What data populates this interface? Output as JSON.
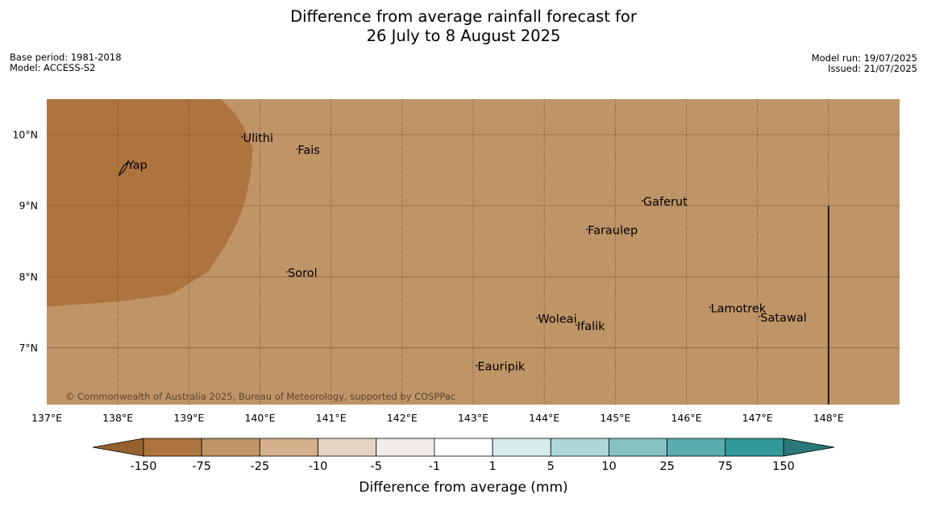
{
  "title": {
    "line1": "Difference from average rainfall forecast for",
    "line2": "26 July to 8 August 2025"
  },
  "meta_left": {
    "base_period": "Base period: 1981-2018",
    "model": "Model: ACCESS-S2"
  },
  "meta_right": {
    "model_run": "Model run: 19/07/2025",
    "issued": "Issued: 21/07/2025"
  },
  "map": {
    "lon_range": [
      137,
      149
    ],
    "lat_range": [
      6.2,
      10.5
    ],
    "lon_ticks": [
      {
        "value": 137,
        "label": "137°E"
      },
      {
        "value": 138,
        "label": "138°E"
      },
      {
        "value": 139,
        "label": "139°E"
      },
      {
        "value": 140,
        "label": "140°E"
      },
      {
        "value": 141,
        "label": "141°E"
      },
      {
        "value": 142,
        "label": "142°E"
      },
      {
        "value": 143,
        "label": "143°E"
      },
      {
        "value": 144,
        "label": "144°E"
      },
      {
        "value": 145,
        "label": "145°E"
      },
      {
        "value": 146,
        "label": "146°E"
      },
      {
        "value": 147,
        "label": "147°E"
      },
      {
        "value": 148,
        "label": "148°E"
      }
    ],
    "lat_ticks": [
      {
        "value": 10,
        "label": "10°N"
      },
      {
        "value": 9,
        "label": "9°N"
      },
      {
        "value": 8,
        "label": "8°N"
      },
      {
        "value": 7,
        "label": "7°N"
      }
    ],
    "background_category": "-75 to -25",
    "anomaly_regions": [
      {
        "category": "-150 to -75",
        "color": "#ad743f",
        "polygon": [
          [
            137,
            10.5
          ],
          [
            139.45,
            10.5
          ],
          [
            139.65,
            10.3
          ],
          [
            139.8,
            10.05
          ],
          [
            139.9,
            9.8
          ],
          [
            139.87,
            9.45
          ],
          [
            139.8,
            9.1
          ],
          [
            139.7,
            8.8
          ],
          [
            139.52,
            8.45
          ],
          [
            139.27,
            8.07
          ],
          [
            138.75,
            7.75
          ],
          [
            138.0,
            7.65
          ],
          [
            137,
            7.58
          ]
        ]
      }
    ],
    "dividing_line": {
      "lon": 148,
      "lat_from": 6.2,
      "lat_to": 9.0
    },
    "islands": [
      {
        "name": "Ulithi",
        "lon": 139.75,
        "lat": 9.9
      },
      {
        "name": "Fais",
        "lon": 140.52,
        "lat": 9.73
      },
      {
        "name": "Yap",
        "lon": 138.12,
        "lat": 9.52
      },
      {
        "name": "Gaferut",
        "lon": 145.38,
        "lat": 9.0
      },
      {
        "name": "Faraulep",
        "lon": 144.6,
        "lat": 8.6
      },
      {
        "name": "Sorol",
        "lon": 140.38,
        "lat": 8.0
      },
      {
        "name": "Lamotrek",
        "lon": 146.33,
        "lat": 7.5
      },
      {
        "name": "Woleai",
        "lon": 143.9,
        "lat": 7.35
      },
      {
        "name": "Ifalik",
        "lon": 144.45,
        "lat": 7.25
      },
      {
        "name": "Satawal",
        "lon": 147.03,
        "lat": 7.37
      },
      {
        "name": "Eauripik",
        "lon": 143.05,
        "lat": 6.68
      }
    ],
    "copyright": "© Commonwealth of Australia 2025, Bureau of Meteorology, supported by COSPPac"
  },
  "legend": {
    "title": "Difference from average (mm)",
    "extend_low_color": "#96602e",
    "extend_high_color": "#2a7777",
    "bins": [
      {
        "from": "-150",
        "to": "-75",
        "color": "#ad743f"
      },
      {
        "from": "-75",
        "to": "-25",
        "color": "#bf9467"
      },
      {
        "from": "-25",
        "to": "-10",
        "color": "#d5b08c"
      },
      {
        "from": "-10",
        "to": "-5",
        "color": "#e6d5c3"
      },
      {
        "from": "-5",
        "to": "-1",
        "color": "#f1ede8"
      },
      {
        "from": "-1",
        "to": "1",
        "color": "#ffffff"
      },
      {
        "from": "1",
        "to": "5",
        "color": "#d6ebea"
      },
      {
        "from": "5",
        "to": "10",
        "color": "#add7d7"
      },
      {
        "from": "10",
        "to": "25",
        "color": "#84c2c1"
      },
      {
        "from": "25",
        "to": "75",
        "color": "#5aadad"
      },
      {
        "from": "75",
        "to": "150",
        "color": "#32999a"
      }
    ],
    "tick_labels": [
      "-150",
      "-75",
      "-25",
      "-10",
      "-5",
      "-1",
      "1",
      "5",
      "10",
      "25",
      "75",
      "150"
    ]
  }
}
